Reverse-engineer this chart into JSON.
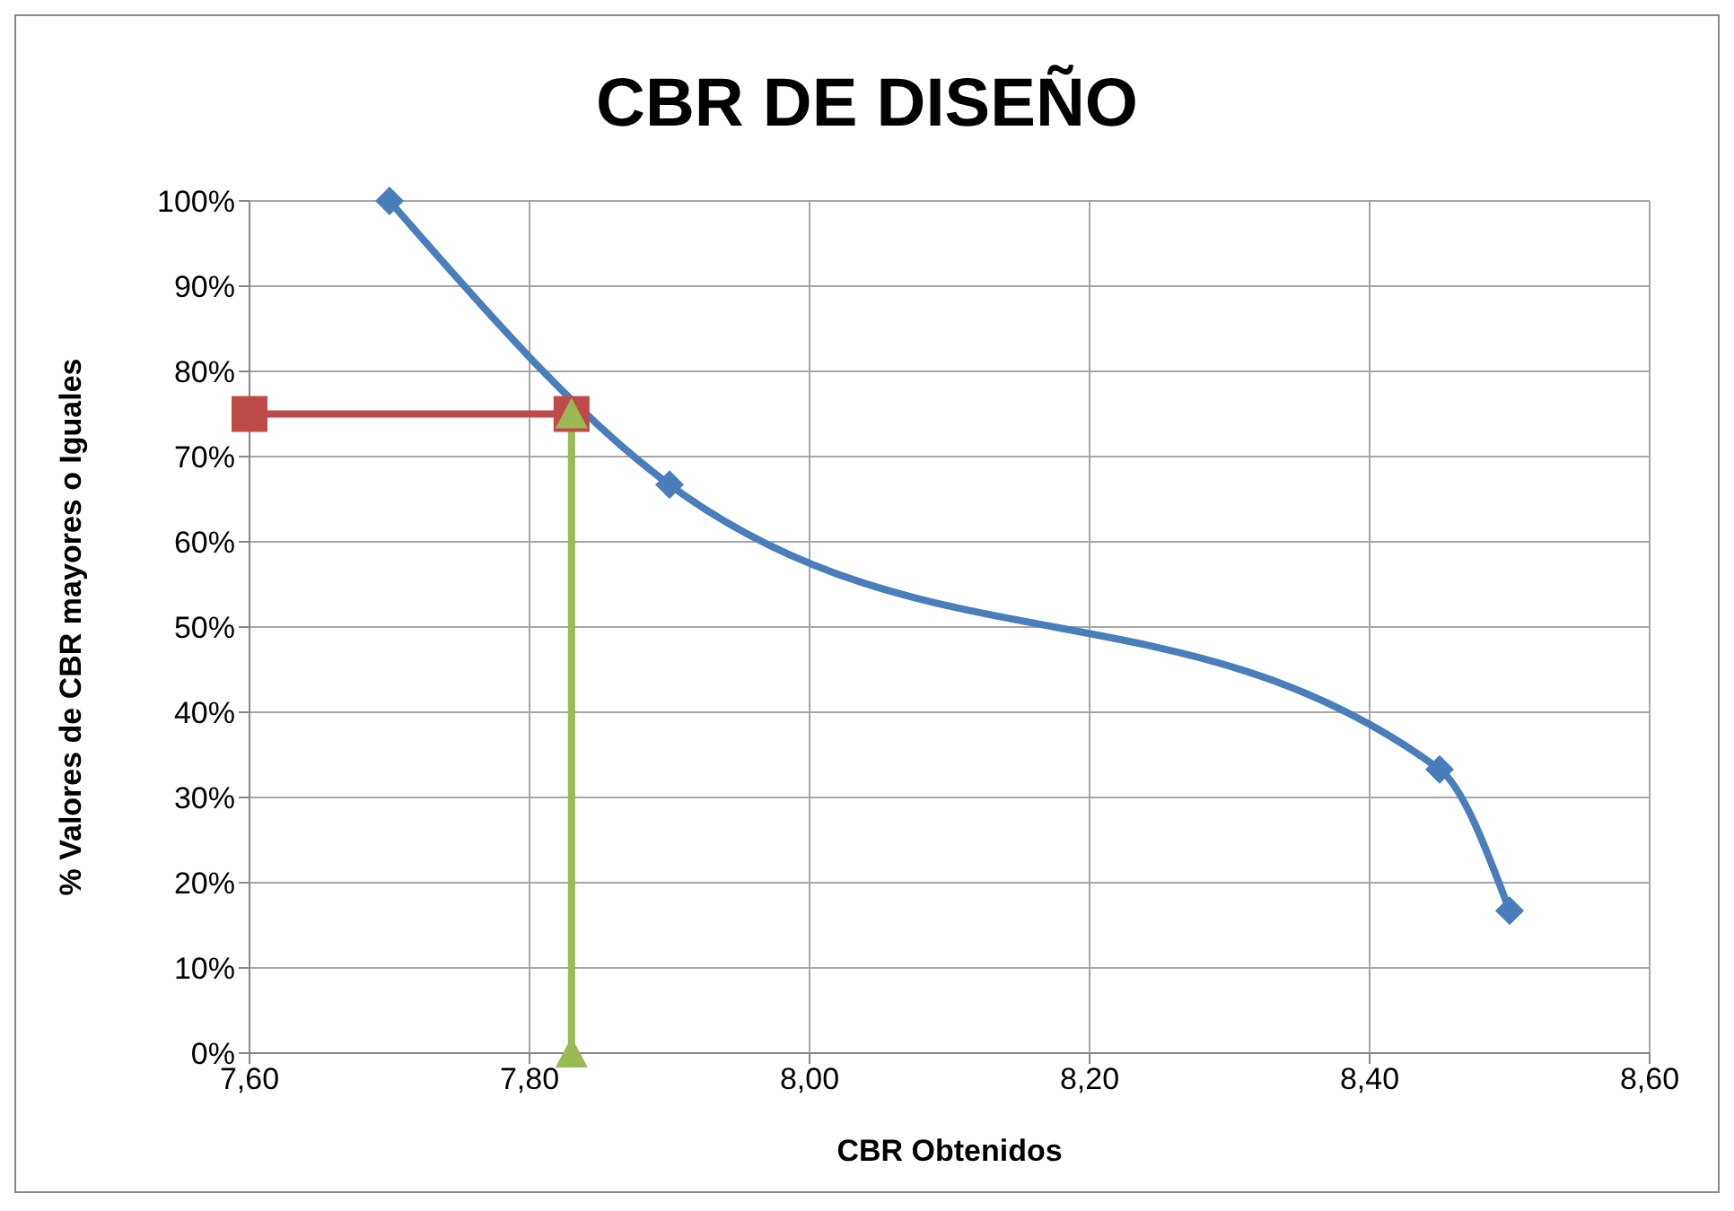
{
  "chart_data": {
    "type": "line",
    "title": "CBR DE DISEÑO",
    "xlabel": "CBR Obtenidos",
    "ylabel": "% Valores de CBR mayores o Iguales",
    "series": [
      {
        "color": "#4a7ebb",
        "marker": "diamond",
        "x": [
          7.7,
          7.9,
          8.45,
          8.5
        ],
        "values": [
          100,
          66.7,
          33.3,
          16.7
        ]
      },
      {
        "color": "#be4b48",
        "marker": "square",
        "x": [
          7.6,
          7.83
        ],
        "values": [
          75,
          75
        ]
      },
      {
        "color": "#98b954",
        "marker": "triangle",
        "x": [
          7.83,
          7.83
        ],
        "values": [
          0,
          75
        ]
      }
    ],
    "xlim": [
      7.6,
      8.6
    ],
    "xticks": [
      {
        "value": 7.6,
        "label": "7,60"
      },
      {
        "value": 7.8,
        "label": "7,80"
      },
      {
        "value": 8.0,
        "label": "8,00"
      },
      {
        "value": 8.2,
        "label": "8,20"
      },
      {
        "value": 8.4,
        "label": "8,40"
      },
      {
        "value": 8.6,
        "label": "8,60"
      }
    ],
    "ylim": [
      0,
      100
    ],
    "yticks": [
      {
        "value": 0,
        "label": "0%"
      },
      {
        "value": 10,
        "label": "10%"
      },
      {
        "value": 20,
        "label": "20%"
      },
      {
        "value": 30,
        "label": "30%"
      },
      {
        "value": 40,
        "label": "40%"
      },
      {
        "value": 50,
        "label": "50%"
      },
      {
        "value": 60,
        "label": "60%"
      },
      {
        "value": 70,
        "label": "70%"
      },
      {
        "value": 80,
        "label": "80%"
      },
      {
        "value": 90,
        "label": "90%"
      },
      {
        "value": 100,
        "label": "100%"
      }
    ],
    "grid": true,
    "legend": false
  }
}
